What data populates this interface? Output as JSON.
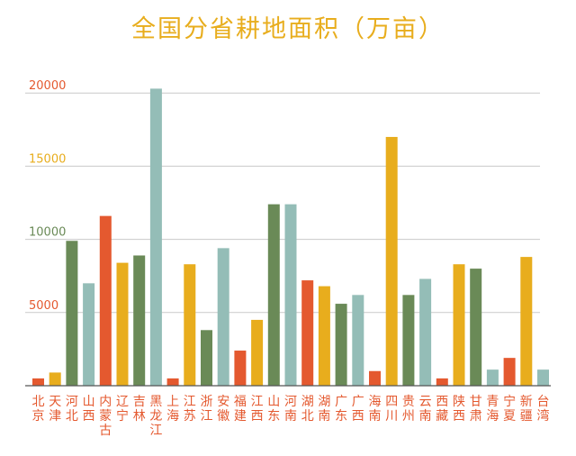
{
  "chart_data": {
    "type": "bar",
    "title": "全国分省耕地面积（万亩）",
    "xlabel": "",
    "ylabel": "",
    "ylim": [
      0,
      21000
    ],
    "yticks": [
      5000,
      10000,
      15000,
      20000
    ],
    "ytick_colors": [
      "#e4592f",
      "#6a8a57",
      "#e8ad1d",
      "#e4592f"
    ],
    "grid": true,
    "categories": [
      "北京",
      "天津",
      "河北",
      "山西",
      "内蒙古",
      "辽宁",
      "吉林",
      "黑龙江",
      "上海",
      "江苏",
      "浙江",
      "安徽",
      "福建",
      "江西",
      "山东",
      "河南",
      "湖北",
      "湖南",
      "广东",
      "广西",
      "海南",
      "四川",
      "贵州",
      "云南",
      "西藏",
      "陕西",
      "甘肃",
      "青海",
      "宁夏",
      "新疆",
      "台湾"
    ],
    "values": [
      500,
      900,
      9900,
      7000,
      11600,
      8400,
      8900,
      20300,
      500,
      8300,
      3800,
      9400,
      2400,
      4500,
      12400,
      12400,
      7200,
      6800,
      5600,
      6200,
      1000,
      17000,
      6200,
      7300,
      500,
      8300,
      8000,
      1100,
      1900,
      8800,
      1100
    ],
    "colors": [
      "#e4592f",
      "#e8ad1d",
      "#6a8a57",
      "#94bdb7",
      "#e4592f",
      "#e8ad1d",
      "#6a8a57",
      "#94bdb7",
      "#e4592f",
      "#e8ad1d",
      "#6a8a57",
      "#94bdb7",
      "#e4592f",
      "#e8ad1d",
      "#6a8a57",
      "#94bdb7",
      "#e4592f",
      "#e8ad1d",
      "#6a8a57",
      "#94bdb7",
      "#e4592f",
      "#e8ad1d",
      "#6a8a57",
      "#94bdb7",
      "#e4592f",
      "#e8ad1d",
      "#6a8a57",
      "#94bdb7",
      "#e4592f",
      "#e8ad1d",
      "#94bdb7"
    ],
    "label_color": "#e4592f",
    "grid_color": "#c9c9c9",
    "axis_color": "#555555"
  }
}
